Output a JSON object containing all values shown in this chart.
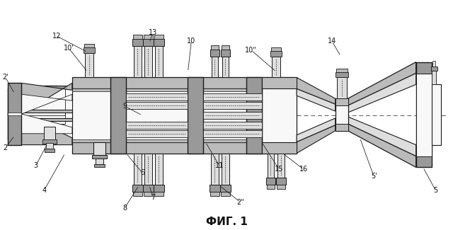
{
  "title": "ФИГ. 1",
  "bg_color": "#ffffff",
  "line_color": "#1a1a1a",
  "gray_dark": "#999999",
  "gray_mid": "#bbbbbb",
  "gray_light": "#dedede",
  "white": "#f8f8f8",
  "dash_color": "#555555"
}
